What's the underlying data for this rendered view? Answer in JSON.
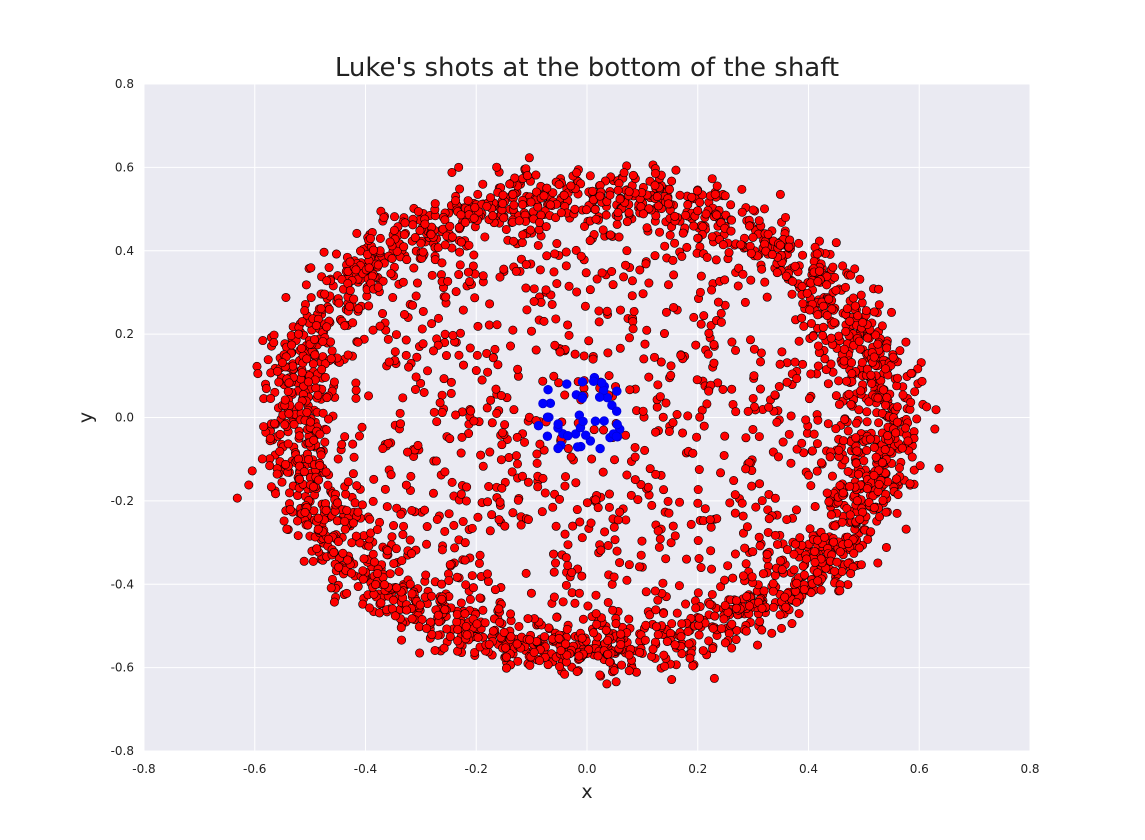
{
  "chart_data": {
    "type": "scatter",
    "title": "Luke's shots at the bottom of the shaft",
    "xlabel": "x",
    "ylabel": "y",
    "xlim": [
      -0.8,
      0.8
    ],
    "ylim": [
      -0.8,
      0.8
    ],
    "xticks": [
      "-0.8",
      "-0.6",
      "-0.4",
      "-0.2",
      "0.0",
      "0.2",
      "0.4",
      "0.6",
      "0.8"
    ],
    "yticks": [
      "-0.8",
      "-0.6",
      "-0.4",
      "-0.2",
      "0.0",
      "0.2",
      "0.4",
      "0.6",
      "0.8"
    ],
    "grid": true,
    "background": "#eaeaf2",
    "grid_color": "#ffffff",
    "series": [
      {
        "color": "#ff0000",
        "edge_color": "#000000",
        "distribution": {
          "ring": {
            "center": [
              0.0,
              -0.01
            ],
            "radius_x": 0.535,
            "radius_y": 0.545,
            "spread": 0.035,
            "count": 2400
          },
          "interior": {
            "center": [
              0.0,
              0.0
            ],
            "radius_x": 0.5,
            "radius_y": 0.5,
            "count": 900
          }
        }
      },
      {
        "color": "#0000ff",
        "edge_color": "#0000cc",
        "distribution": {
          "cluster": {
            "center": [
              -0.01,
              0.0
            ],
            "radius_x": 0.085,
            "radius_y": 0.1,
            "count": 45
          }
        }
      }
    ]
  }
}
